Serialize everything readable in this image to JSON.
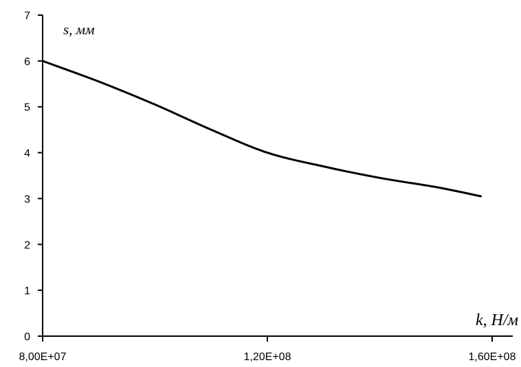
{
  "chart_data": {
    "type": "line",
    "title": "",
    "xlabel": "k, Н/м",
    "ylabel": "s, мм",
    "x_ticks": [
      {
        "value": 80000000,
        "label": "8,00E+07"
      },
      {
        "value": 120000000,
        "label": "1,20E+08"
      },
      {
        "value": 160000000,
        "label": "1,60E+08"
      }
    ],
    "y_ticks": [
      0,
      1,
      2,
      3,
      4,
      5,
      6,
      7
    ],
    "xlim": [
      80000000,
      160000000
    ],
    "ylim": [
      0,
      7
    ],
    "grid": false,
    "series": [
      {
        "x": [
          80000000,
          90000000,
          100000000,
          110000000,
          120000000,
          130000000,
          140000000,
          150000000,
          158000000
        ],
        "y": [
          6.0,
          5.55,
          5.05,
          4.5,
          4.0,
          3.7,
          3.45,
          3.25,
          3.05
        ],
        "color": "#000000"
      }
    ]
  }
}
